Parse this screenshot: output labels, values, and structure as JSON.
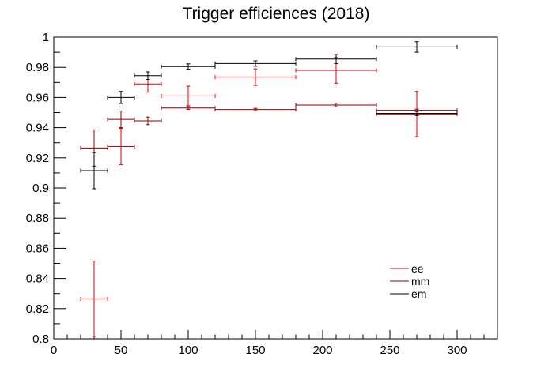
{
  "chart_data": {
    "type": "scatter",
    "title": "Trigger efficiences (2018)",
    "xlabel": "",
    "ylabel": "",
    "xlim": [
      0,
      330
    ],
    "ylim": [
      0.8,
      1.0
    ],
    "xticks": [
      0,
      50,
      100,
      150,
      200,
      250,
      300
    ],
    "xtick_labels": [
      "0",
      "50",
      "100",
      "150",
      "200",
      "250",
      "300"
    ],
    "yticks": [
      0.8,
      0.82,
      0.84,
      0.86,
      0.88,
      0.9,
      0.92,
      0.94,
      0.96,
      0.98,
      1.0
    ],
    "ytick_labels": [
      "0.8",
      "0.82",
      "0.84",
      "0.86",
      "0.88",
      "0.9",
      "0.92",
      "0.94",
      "0.96",
      "0.98",
      "1"
    ],
    "grid": false,
    "legend_position": "lower-right",
    "series": [
      {
        "name": "ee",
        "color": "#e00000",
        "points": [
          {
            "x": 30,
            "xlo": 20,
            "xhi": 40,
            "y": 0.8265,
            "err": 0.025
          },
          {
            "x": 50,
            "xlo": 40,
            "xhi": 60,
            "y": 0.9275,
            "err": 0.012
          },
          {
            "x": 70,
            "xlo": 60,
            "xhi": 80,
            "y": 0.969,
            "err": 0.0055
          },
          {
            "x": 100,
            "xlo": 80,
            "xhi": 120,
            "y": 0.961,
            "err": 0.0065
          },
          {
            "x": 150,
            "xlo": 120,
            "xhi": 180,
            "y": 0.9735,
            "err": 0.0055
          },
          {
            "x": 210,
            "xlo": 180,
            "xhi": 240,
            "y": 0.978,
            "err": 0.0085
          },
          {
            "x": 270,
            "xlo": 240,
            "xhi": 300,
            "y": 0.949,
            "err": 0.015
          }
        ]
      },
      {
        "name": "mm",
        "color": "#8b0000",
        "points": [
          {
            "x": 30,
            "xlo": 20,
            "xhi": 40,
            "y": 0.9265,
            "err": 0.012
          },
          {
            "x": 50,
            "xlo": 40,
            "xhi": 60,
            "y": 0.9455,
            "err": 0.0055
          },
          {
            "x": 70,
            "xlo": 60,
            "xhi": 80,
            "y": 0.9445,
            "err": 0.0025
          },
          {
            "x": 100,
            "xlo": 80,
            "xhi": 120,
            "y": 0.953,
            "err": 0.0008
          },
          {
            "x": 150,
            "xlo": 120,
            "xhi": 180,
            "y": 0.952,
            "err": 0.0008
          },
          {
            "x": 210,
            "xlo": 180,
            "xhi": 240,
            "y": 0.955,
            "err": 0.0012
          },
          {
            "x": 270,
            "xlo": 240,
            "xhi": 300,
            "y": 0.9515,
            "err": 0.0008
          }
        ]
      },
      {
        "name": "em",
        "color": "#000000",
        "points": [
          {
            "x": 30,
            "xlo": 20,
            "xhi": 40,
            "y": 0.9115,
            "err": 0.012
          },
          {
            "x": 50,
            "xlo": 40,
            "xhi": 60,
            "y": 0.96,
            "err": 0.004
          },
          {
            "x": 70,
            "xlo": 60,
            "xhi": 80,
            "y": 0.9745,
            "err": 0.0025
          },
          {
            "x": 100,
            "xlo": 80,
            "xhi": 120,
            "y": 0.9805,
            "err": 0.0018
          },
          {
            "x": 150,
            "xlo": 120,
            "xhi": 180,
            "y": 0.9825,
            "err": 0.0018
          },
          {
            "x": 210,
            "xlo": 180,
            "xhi": 240,
            "y": 0.9855,
            "err": 0.003
          },
          {
            "x": 270,
            "xlo": 240,
            "xhi": 300,
            "y": 0.9495,
            "err": 0.0015
          },
          {
            "x": 270,
            "xlo": 240,
            "xhi": 300,
            "y": 0.9935,
            "err": 0.0035
          }
        ]
      }
    ]
  }
}
